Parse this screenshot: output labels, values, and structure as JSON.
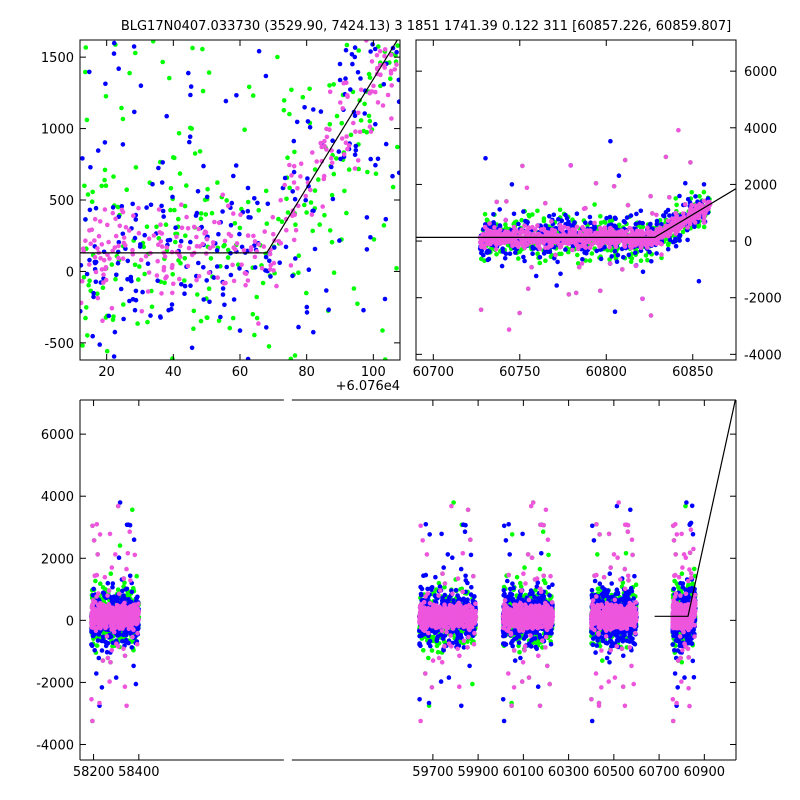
{
  "title": "BLG17N0407.033730 (3529.90, 7424.13)    3 1851 1741.39 0.122 311 [60857.226, 60859.807]",
  "colors": {
    "series_blue": "#0000ff",
    "series_green": "#00ff00",
    "series_magenta": "#ee55dd",
    "model_line": "#000000"
  },
  "chart_data": [
    {
      "id": "zoom-peak",
      "type": "scatter",
      "title": "",
      "xlabel": "",
      "ylabel": "",
      "x_offset_label": "+6.076e4",
      "xlim": [
        12,
        108
      ],
      "ylim": [
        -620,
        1620
      ],
      "xticks": [
        20,
        40,
        60,
        80,
        100
      ],
      "yticks": [
        -500,
        0,
        500,
        1000,
        1500
      ],
      "series": [
        {
          "name": "blue",
          "color": "#0000ff"
        },
        {
          "name": "green",
          "color": "#00ff00"
        },
        {
          "name": "magenta",
          "color": "#ee55dd"
        }
      ],
      "model": {
        "x": [
          12,
          68,
          108
        ],
        "y": [
          130,
          130,
          1650
        ]
      }
    },
    {
      "id": "zoom-season",
      "type": "scatter",
      "title": "",
      "xlabel": "",
      "ylabel": "",
      "xlim": [
        60690,
        60875
      ],
      "ylim": [
        -4200,
        7100
      ],
      "xticks": [
        60700,
        60750,
        60800,
        60850
      ],
      "yticks": [
        -4000,
        -2000,
        0,
        2000,
        4000,
        6000
      ],
      "yaxis_side": "right",
      "series": [
        {
          "name": "blue",
          "color": "#0000ff"
        },
        {
          "name": "green",
          "color": "#00ff00"
        },
        {
          "name": "magenta",
          "color": "#ee55dd"
        }
      ],
      "model": {
        "x": [
          60690,
          60828,
          60875
        ],
        "y": [
          130,
          130,
          1850
        ]
      }
    },
    {
      "id": "full-lightcurve",
      "type": "scatter",
      "title": "",
      "xlabel": "",
      "ylabel": "",
      "xlim": [
        58140,
        61040
      ],
      "ylim": [
        -4500,
        7100
      ],
      "broken_axis": true,
      "xticks": [
        58200,
        58400,
        59700,
        59900,
        60100,
        60300,
        60500,
        60700,
        60900
      ],
      "yticks": [
        -4000,
        -2000,
        0,
        2000,
        4000,
        6000
      ],
      "seasons": [
        {
          "name": "season-2018",
          "x": [
            58190,
            58400
          ]
        },
        {
          "name": "season-2022",
          "x": [
            59640,
            59890
          ]
        },
        {
          "name": "season-2023",
          "x": [
            60010,
            60230
          ]
        },
        {
          "name": "season-2024",
          "x": [
            60400,
            60600
          ]
        },
        {
          "name": "season-2025",
          "x": [
            60760,
            60860
          ]
        }
      ],
      "series": [
        {
          "name": "blue",
          "color": "#0000ff"
        },
        {
          "name": "green",
          "color": "#00ff00"
        },
        {
          "name": "magenta",
          "color": "#ee55dd"
        }
      ],
      "model": {
        "x": [
          60680,
          60828,
          61040
        ],
        "y": [
          130,
          130,
          7200
        ]
      }
    }
  ]
}
